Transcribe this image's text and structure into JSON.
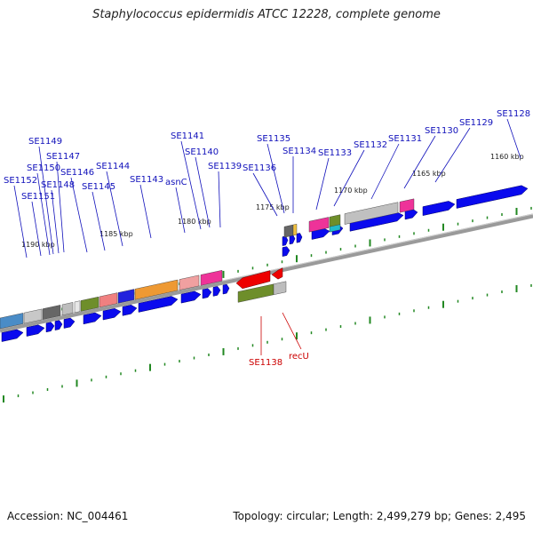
{
  "title": "Staphylococcus epidermidis ATCC 12228, complete genome",
  "accession": "Accession: NC_004461",
  "summary": "Topology: circular; Length: 2,499,279 bp; Genes: 2,495",
  "colors": {
    "backbone": "#808080",
    "forward_gene": "#0a0aee",
    "reverse_gene": "#ee0000",
    "forward_label": "#1111bb",
    "reverse_label": "#cc0000",
    "tick": "#228822"
  },
  "scale_labels": [
    "1190 kbp",
    "1185 kbp",
    "1180 kbp",
    "1175 kbp",
    "1170 kbp",
    "1165 kbp",
    "1160 kbp"
  ],
  "forward_gene_labels": [
    "SE1152",
    "SE1151",
    "SE1150",
    "SE1149",
    "SE1148",
    "SE1147",
    "SE1146",
    "SE1145",
    "SE1144",
    "SE1143",
    "asnC",
    "SE1141",
    "SE1140",
    "SE1139",
    "SE1136",
    "SE1135",
    "SE1134",
    "SE1133",
    "SE1132",
    "SE1131",
    "SE1130",
    "SE1129",
    "SE1128"
  ],
  "reverse_gene_labels": [
    "SE1138",
    "recU"
  ]
}
